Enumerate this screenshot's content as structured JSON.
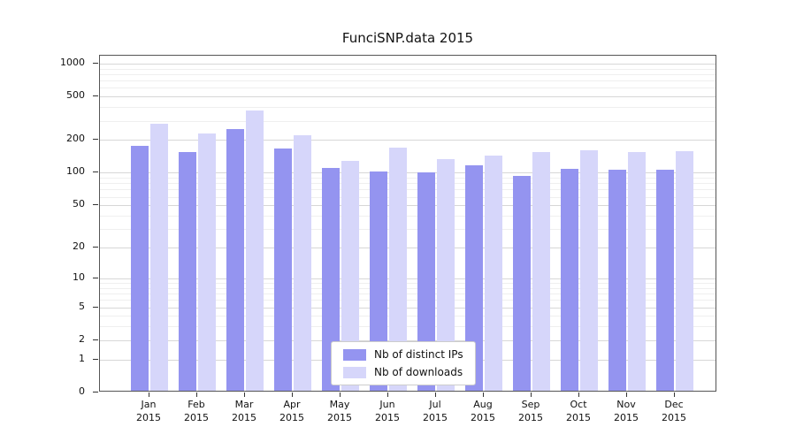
{
  "title": "FunciSNP.data 2015",
  "chart_data": {
    "type": "bar",
    "title": "FunciSNP.data 2015",
    "categories": [
      "Jan",
      "Feb",
      "Mar",
      "Apr",
      "May",
      "Jun",
      "Jul",
      "Aug",
      "Sep",
      "Oct",
      "Nov",
      "Dec"
    ],
    "year": "2015",
    "series": [
      {
        "name": "Nb of distinct IPs",
        "color": "#9494f0",
        "values": [
          170,
          150,
          245,
          160,
          107,
          100,
          97,
          112,
          90,
          105,
          103,
          102
        ]
      },
      {
        "name": "Nb of downloads",
        "color": "#d6d6fa",
        "values": [
          270,
          220,
          360,
          215,
          125,
          165,
          130,
          140,
          150,
          155,
          150,
          152
        ]
      }
    ],
    "yticks": [
      0,
      1,
      2,
      5,
      10,
      20,
      50,
      100,
      200,
      500,
      1000
    ],
    "minor_yticks": [
      3,
      4,
      6,
      7,
      8,
      9,
      30,
      40,
      60,
      70,
      80,
      90,
      300,
      400,
      600,
      700,
      800,
      900
    ],
    "ylim": [
      0,
      1000
    ],
    "yscale": "log1p",
    "grid": true,
    "legend_position": "bottom-center",
    "xlabel": "",
    "ylabel": ""
  }
}
